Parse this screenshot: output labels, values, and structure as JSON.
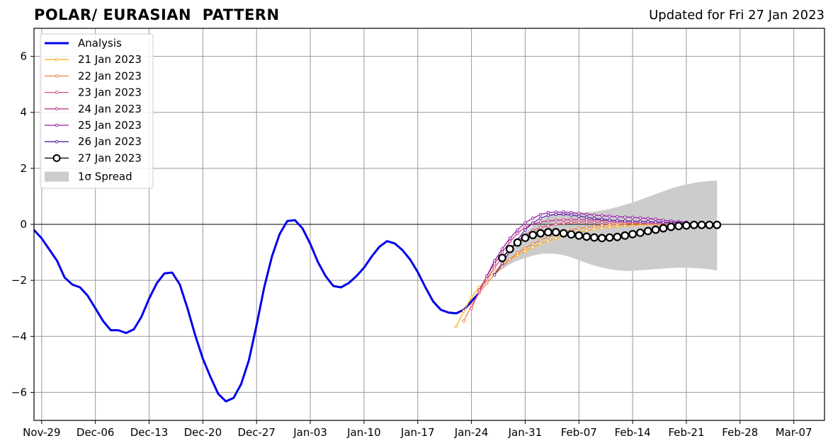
{
  "chart_data": {
    "type": "line",
    "title": "POLAR/ EURASIAN  PATTERN",
    "subtitle": "Updated for Fri 27 Jan 2023",
    "xlabel": "",
    "ylabel": "",
    "xlim": [
      "2022-11-28",
      "2023-03-11"
    ],
    "ylim": [
      -7,
      7
    ],
    "grid": true,
    "legend_position": "top-left",
    "x_ticks": [
      "Nov-29",
      "Dec-06",
      "Dec-13",
      "Dec-20",
      "Dec-27",
      "Jan-03",
      "Jan-10",
      "Jan-17",
      "Jan-24",
      "Jan-31",
      "Feb-07",
      "Feb-14",
      "Feb-21",
      "Feb-28",
      "Mar-07"
    ],
    "x_tick_dates": [
      "2022-11-29",
      "2022-12-06",
      "2022-12-13",
      "2022-12-20",
      "2022-12-27",
      "2023-01-03",
      "2023-01-10",
      "2023-01-17",
      "2023-01-24",
      "2023-01-31",
      "2023-02-07",
      "2023-02-14",
      "2023-02-21",
      "2023-02-28",
      "2023-03-07"
    ],
    "y_ticks": [
      -6,
      -4,
      -2,
      0,
      2,
      4,
      6
    ],
    "y_tick_labels": [
      "−6",
      "−4",
      "−2",
      "0",
      "2",
      "4",
      "6"
    ],
    "analysis": {
      "name": "Analysis",
      "color": "#0000ee",
      "start_date": "2022-11-28",
      "values": [
        -0.2,
        -0.5,
        -0.9,
        -1.3,
        -1.9,
        -2.15,
        -2.25,
        -2.55,
        -3.0,
        -3.45,
        -3.78,
        -3.78,
        -3.88,
        -3.75,
        -3.3,
        -2.65,
        -2.1,
        -1.75,
        -1.72,
        -2.15,
        -3.0,
        -3.95,
        -4.8,
        -5.45,
        -6.05,
        -6.32,
        -6.2,
        -5.7,
        -4.85,
        -3.6,
        -2.25,
        -1.15,
        -0.35,
        0.12,
        0.15,
        -0.15,
        -0.7,
        -1.35,
        -1.85,
        -2.2,
        -2.25,
        -2.1,
        -1.85,
        -1.55,
        -1.15,
        -0.8,
        -0.6,
        -0.68,
        -0.92,
        -1.25,
        -1.7,
        -2.25,
        -2.75,
        -3.05,
        -3.15,
        -3.18,
        -3.05,
        -2.75,
        -2.45
      ]
    },
    "forecasts": [
      {
        "name": "21 Jan 2023",
        "color": "#ffb020",
        "start_date": "2023-01-22",
        "values": [
          -3.65,
          -3.1,
          -2.6,
          -2.25,
          -1.95,
          -1.7,
          -1.45,
          -1.25,
          -1.1,
          -0.95,
          -0.82,
          -0.7,
          -0.6,
          -0.5,
          -0.42,
          -0.35,
          -0.28,
          -0.22,
          -0.17,
          -0.13,
          -0.1,
          -0.07,
          -0.05,
          -0.03,
          -0.02,
          -0.01,
          0.0,
          0.0,
          0.0,
          0.0,
          0.0
        ]
      },
      {
        "name": "22 Jan 2023",
        "color": "#f08040",
        "start_date": "2023-01-23",
        "values": [
          -3.45,
          -2.9,
          -2.45,
          -2.1,
          -1.8,
          -1.5,
          -1.25,
          -1.02,
          -0.85,
          -0.7,
          -0.56,
          -0.45,
          -0.35,
          -0.27,
          -0.2,
          -0.14,
          -0.1,
          -0.06,
          -0.03,
          -0.01,
          0.0,
          0.02,
          0.02,
          0.03,
          0.03,
          0.03,
          0.02,
          0.02,
          0.01,
          0.01
        ]
      },
      {
        "name": "23 Jan 2023",
        "color": "#e05075",
        "start_date": "2023-01-24",
        "values": [
          -3.0,
          -2.4,
          -1.95,
          -1.55,
          -1.2,
          -0.9,
          -0.6,
          -0.38,
          -0.22,
          -0.12,
          -0.05,
          0.0,
          0.04,
          0.07,
          0.08,
          0.08,
          0.08,
          0.08,
          0.07,
          0.07,
          0.06,
          0.05,
          0.04,
          0.03,
          0.02,
          0.02,
          0.01,
          0.01,
          0.0
        ]
      },
      {
        "name": "24 Jan 2023",
        "color": "#c03a8c",
        "start_date": "2023-01-25",
        "values": [
          -2.35,
          -1.85,
          -1.4,
          -1.0,
          -0.62,
          -0.32,
          -0.1,
          0.02,
          0.08,
          0.12,
          0.15,
          0.16,
          0.17,
          0.17,
          0.16,
          0.16,
          0.15,
          0.14,
          0.13,
          0.12,
          0.11,
          0.1,
          0.09,
          0.08,
          0.07,
          0.06,
          0.05,
          0.04
        ]
      },
      {
        "name": "25 Jan 2023",
        "color": "#9a1fa8",
        "start_date": "2023-01-26",
        "values": [
          -1.85,
          -1.3,
          -0.88,
          -0.5,
          -0.2,
          0.05,
          0.22,
          0.35,
          0.42,
          0.44,
          0.44,
          0.42,
          0.39,
          0.36,
          0.33,
          0.31,
          0.29,
          0.27,
          0.26,
          0.25,
          0.23,
          0.21,
          0.18,
          0.15,
          0.12,
          0.1,
          0.08
        ]
      },
      {
        "name": "26 Jan 2023",
        "color": "#5a18a8",
        "start_date": "2023-01-27",
        "values": [
          -1.8,
          -1.4,
          -0.95,
          -0.55,
          -0.2,
          0.05,
          0.22,
          0.32,
          0.36,
          0.36,
          0.33,
          0.29,
          0.25,
          0.21,
          0.18,
          0.15,
          0.13,
          0.12,
          0.11,
          0.1,
          0.09,
          0.08,
          0.07,
          0.06,
          0.05,
          0.05
        ]
      },
      {
        "name": "27 Jan 2023",
        "color": "#000000",
        "start_date": "2023-01-28",
        "values": [
          -1.2,
          -0.88,
          -0.65,
          -0.48,
          -0.38,
          -0.32,
          -0.28,
          -0.28,
          -0.32,
          -0.36,
          -0.4,
          -0.44,
          -0.47,
          -0.49,
          -0.47,
          -0.45,
          -0.4,
          -0.35,
          -0.3,
          -0.24,
          -0.19,
          -0.14,
          -0.09,
          -0.06,
          -0.04,
          -0.02,
          -0.02,
          -0.02,
          -0.02
        ]
      }
    ],
    "spread": {
      "name": "1σ Spread",
      "color": "#cccccc",
      "start_date": "2023-01-27",
      "upper": [
        -1.7,
        -1.35,
        -0.95,
        -0.6,
        -0.3,
        -0.05,
        0.15,
        0.3,
        0.38,
        0.42,
        0.43,
        0.43,
        0.43,
        0.45,
        0.5,
        0.55,
        0.62,
        0.7,
        0.78,
        0.88,
        0.98,
        1.08,
        1.18,
        1.28,
        1.36,
        1.42,
        1.48,
        1.52,
        1.55,
        1.56
      ],
      "lower": [
        -1.8,
        -1.6,
        -1.42,
        -1.3,
        -1.2,
        -1.12,
        -1.06,
        -1.04,
        -1.05,
        -1.1,
        -1.18,
        -1.28,
        -1.38,
        -1.47,
        -1.54,
        -1.6,
        -1.64,
        -1.66,
        -1.66,
        -1.64,
        -1.62,
        -1.6,
        -1.58,
        -1.56,
        -1.55,
        -1.55,
        -1.56,
        -1.58,
        -1.6,
        -1.65
      ]
    }
  }
}
